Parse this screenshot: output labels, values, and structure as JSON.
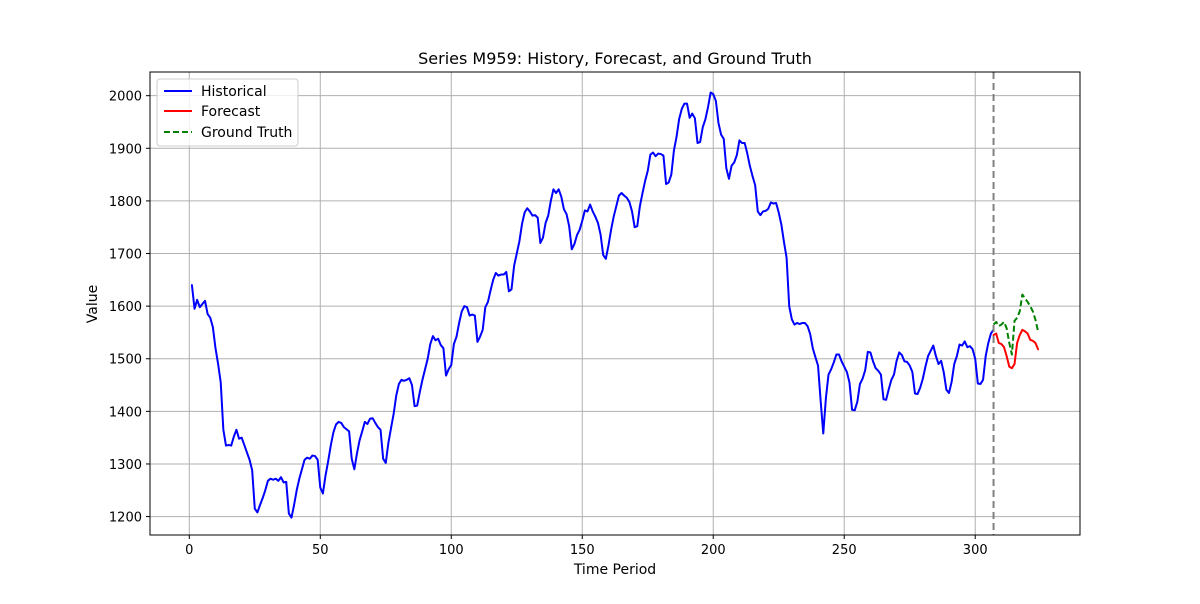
{
  "chart_data": {
    "type": "line",
    "title": "Series M959: History, Forecast, and Ground Truth",
    "xlabel": "Time Period",
    "ylabel": "Value",
    "xlim": [
      -15,
      340
    ],
    "ylim": [
      1165,
      2045
    ],
    "xticks": [
      0,
      50,
      100,
      150,
      200,
      250,
      300
    ],
    "xtick_labels": [
      "0",
      "50",
      "100",
      "150",
      "200",
      "250",
      "300"
    ],
    "yticks": [
      1200,
      1300,
      1400,
      1500,
      1600,
      1700,
      1800,
      1900,
      2000
    ],
    "ytick_labels": [
      "1200",
      "1300",
      "1400",
      "1500",
      "1600",
      "1700",
      "1800",
      "1900",
      "2000"
    ],
    "grid": true,
    "legend_position": "top-left",
    "forecast_start_marker_x": 307,
    "colors": {
      "historical": "#0000ff",
      "forecast": "#ff0000",
      "ground_truth": "#008000",
      "marker_line": "#808080",
      "grid": "#b0b0b0"
    },
    "series": [
      {
        "name": "Historical",
        "style": "solid",
        "color": "#0000ff",
        "x": [
          1,
          2,
          3,
          4,
          5,
          6,
          7,
          8,
          9,
          10,
          11,
          12,
          13,
          14,
          15,
          16,
          17,
          18,
          19,
          20,
          21,
          22,
          23,
          24,
          25,
          26,
          27,
          28,
          29,
          30,
          31,
          32,
          33,
          34,
          35,
          36,
          37,
          38,
          39,
          40,
          41,
          42,
          43,
          44,
          45,
          46,
          47,
          48,
          49,
          50,
          51,
          52,
          53,
          54,
          55,
          56,
          57,
          58,
          59,
          60,
          61,
          62,
          63,
          64,
          65,
          66,
          67,
          68,
          69,
          70,
          71,
          72,
          73,
          74,
          75,
          76,
          77,
          78,
          79,
          80,
          81,
          82,
          83,
          84,
          85,
          86,
          87,
          88,
          89,
          90,
          91,
          92,
          93,
          94,
          95,
          96,
          97,
          98,
          99,
          100,
          101,
          102,
          103,
          104,
          105,
          106,
          107,
          108,
          109,
          110,
          111,
          112,
          113,
          114,
          115,
          116,
          117,
          118,
          119,
          120,
          121,
          122,
          123,
          124,
          125,
          126,
          127,
          128,
          129,
          130,
          131,
          132,
          133,
          134,
          135,
          136,
          137,
          138,
          139,
          140,
          141,
          142,
          143,
          144,
          145,
          146,
          147,
          148,
          149,
          150,
          151,
          152,
          153,
          154,
          155,
          156,
          157,
          158,
          159,
          160,
          161,
          162,
          163,
          164,
          165,
          166,
          167,
          168,
          169,
          170,
          171,
          172,
          173,
          174,
          175,
          176,
          177,
          178,
          179,
          180,
          181,
          182,
          183,
          184,
          185,
          186,
          187,
          188,
          189,
          190,
          191,
          192,
          193,
          194,
          195,
          196,
          197,
          198,
          199,
          200,
          201,
          202,
          203,
          204,
          205,
          206,
          207,
          208,
          209,
          210,
          211,
          212,
          213,
          214,
          215,
          216,
          217,
          218,
          219,
          220,
          221,
          222,
          223,
          224,
          225,
          226,
          227,
          228,
          229,
          230,
          231,
          232,
          233,
          234,
          235,
          236,
          237,
          238,
          239,
          240,
          241,
          242,
          243,
          244,
          245,
          246,
          247,
          248,
          249,
          250,
          251,
          252,
          253,
          254,
          255,
          256,
          257,
          258,
          259,
          260,
          261,
          262,
          263,
          264,
          265,
          266,
          267,
          268,
          269,
          270,
          271,
          272,
          273,
          274,
          275,
          276,
          277,
          278,
          279,
          280,
          281,
          282,
          283,
          284,
          285,
          286,
          287,
          288,
          289,
          290,
          291,
          292,
          293,
          294,
          295,
          296,
          297,
          298,
          299,
          300,
          301,
          302,
          303,
          304,
          305,
          306,
          307
        ],
        "values": [
          1640,
          1595,
          1612,
          1598,
          1604,
          1610,
          1585,
          1578,
          1560,
          1520,
          1490,
          1455,
          1365,
          1335,
          1336,
          1335,
          1352,
          1365,
          1348,
          1350,
          1336,
          1322,
          1308,
          1288,
          1215,
          1208,
          1222,
          1235,
          1250,
          1268,
          1272,
          1270,
          1272,
          1268,
          1275,
          1265,
          1266,
          1206,
          1198,
          1222,
          1250,
          1272,
          1290,
          1308,
          1312,
          1310,
          1316,
          1315,
          1308,
          1255,
          1244,
          1278,
          1305,
          1335,
          1360,
          1375,
          1380,
          1378,
          1370,
          1366,
          1362,
          1310,
          1290,
          1320,
          1345,
          1362,
          1380,
          1376,
          1386,
          1387,
          1378,
          1370,
          1365,
          1310,
          1302,
          1340,
          1368,
          1395,
          1430,
          1452,
          1460,
          1458,
          1460,
          1463,
          1450,
          1410,
          1411,
          1437,
          1460,
          1480,
          1500,
          1528,
          1543,
          1535,
          1538,
          1526,
          1520,
          1468,
          1480,
          1488,
          1528,
          1542,
          1568,
          1590,
          1600,
          1598,
          1582,
          1584,
          1582,
          1532,
          1542,
          1555,
          1598,
          1608,
          1630,
          1650,
          1663,
          1658,
          1660,
          1660,
          1665,
          1628,
          1632,
          1677,
          1700,
          1723,
          1756,
          1778,
          1786,
          1780,
          1772,
          1773,
          1768,
          1720,
          1730,
          1758,
          1772,
          1800,
          1822,
          1815,
          1822,
          1808,
          1784,
          1775,
          1752,
          1708,
          1718,
          1735,
          1745,
          1762,
          1782,
          1780,
          1793,
          1780,
          1770,
          1758,
          1736,
          1697,
          1690,
          1715,
          1745,
          1770,
          1790,
          1810,
          1815,
          1810,
          1806,
          1798,
          1780,
          1750,
          1752,
          1790,
          1815,
          1838,
          1857,
          1888,
          1892,
          1885,
          1890,
          1889,
          1886,
          1832,
          1835,
          1850,
          1896,
          1922,
          1956,
          1975,
          1985,
          1985,
          1958,
          1966,
          1957,
          1910,
          1912,
          1940,
          1955,
          1978,
          2006,
          2003,
          1990,
          1948,
          1926,
          1918,
          1862,
          1842,
          1867,
          1873,
          1887,
          1915,
          1910,
          1910,
          1890,
          1866,
          1847,
          1830,
          1780,
          1773,
          1780,
          1781,
          1785,
          1797,
          1795,
          1796,
          1778,
          1755,
          1722,
          1692,
          1600,
          1575,
          1565,
          1568,
          1566,
          1568,
          1568,
          1562,
          1547,
          1520,
          1503,
          1487,
          1420,
          1358,
          1425,
          1470,
          1480,
          1493,
          1508,
          1508,
          1495,
          1485,
          1475,
          1455,
          1403,
          1402,
          1418,
          1452,
          1462,
          1478,
          1513,
          1512,
          1495,
          1482,
          1477,
          1470,
          1423,
          1422,
          1442,
          1460,
          1470,
          1496,
          1512,
          1507,
          1495,
          1494,
          1487,
          1475,
          1434,
          1433,
          1445,
          1462,
          1485,
          1505,
          1515,
          1525,
          1505,
          1490,
          1496,
          1474,
          1441,
          1435,
          1456,
          1490,
          1505,
          1527,
          1525,
          1533,
          1522,
          1524,
          1518,
          1500,
          1453,
          1452,
          1460,
          1505,
          1530,
          1548,
          1555
        ]
      },
      {
        "name": "Forecast",
        "style": "solid",
        "color": "#ff0000",
        "x": [
          307,
          308,
          309,
          310,
          311,
          312,
          313,
          314,
          315,
          316,
          317,
          318,
          319,
          320,
          321,
          322,
          323,
          324
        ],
        "values": [
          1545,
          1548,
          1530,
          1528,
          1522,
          1505,
          1485,
          1482,
          1490,
          1530,
          1545,
          1555,
          1552,
          1548,
          1536,
          1534,
          1530,
          1518
        ]
      },
      {
        "name": "Ground Truth",
        "style": "dashed",
        "color": "#008000",
        "x": [
          307,
          308,
          309,
          310,
          311,
          312,
          313,
          314,
          315,
          316,
          317,
          318,
          319,
          320,
          321,
          322,
          323,
          324
        ],
        "values": [
          1565,
          1570,
          1562,
          1565,
          1570,
          1558,
          1530,
          1508,
          1572,
          1578,
          1590,
          1622,
          1615,
          1608,
          1600,
          1590,
          1574,
          1552
        ]
      }
    ]
  }
}
